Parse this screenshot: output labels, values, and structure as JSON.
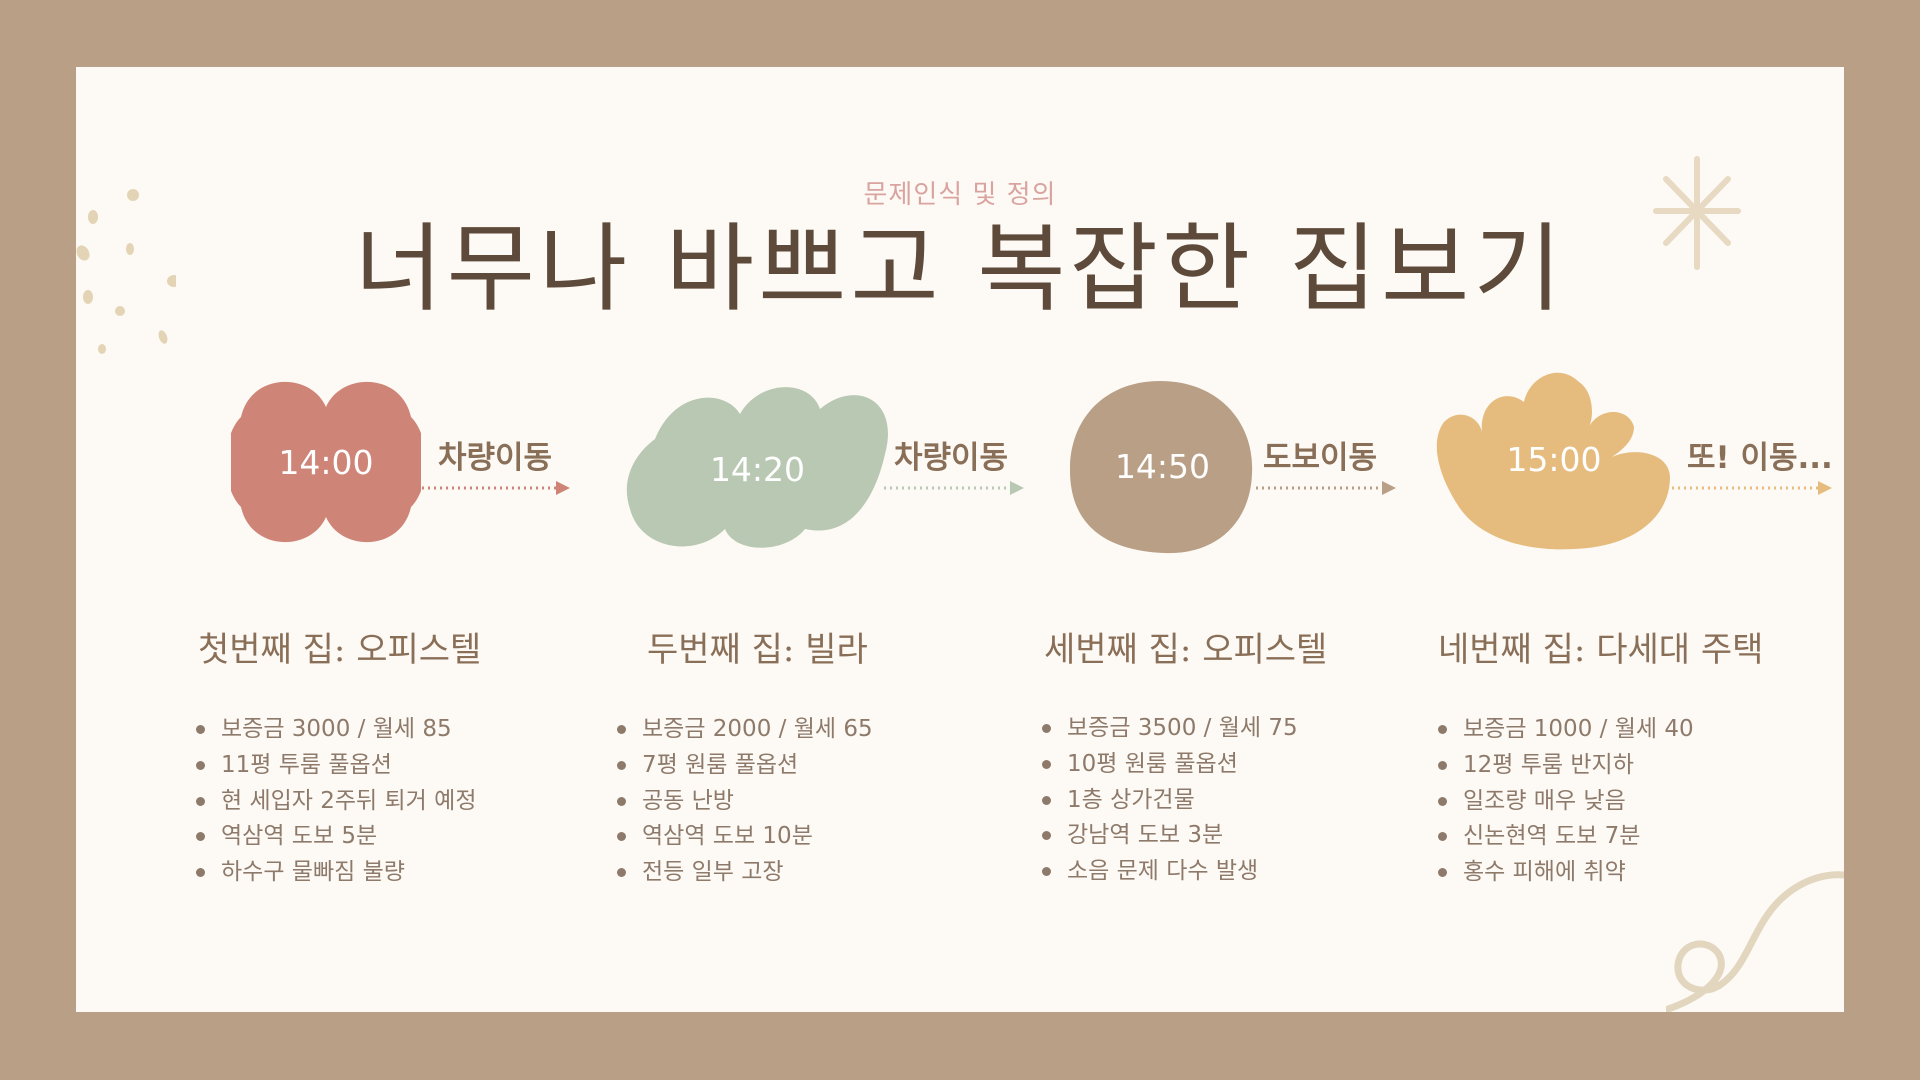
{
  "slide": {
    "subtitle": "문제인식 및 정의",
    "title": "너무나 바쁘고 복잡한 집보기"
  },
  "colors": {
    "frame": "#b89f85",
    "card": "#fdfaf5",
    "red": "#cf8478",
    "green": "#b9c8b2",
    "brown": "#b89f85",
    "yellow": "#e6bc7e"
  },
  "steps": [
    {
      "time": "14:00",
      "move": "차량이동",
      "house": "첫번째 집: 오피스텔",
      "facts": [
        "보증금 3000 / 월세 85",
        "11평 투룸 풀옵션",
        "현 세입자 2주뒤 퇴거 예정",
        "역삼역 도보 5분",
        "하수구 물빠짐 불량"
      ]
    },
    {
      "time": "14:20",
      "move": "차량이동",
      "house": "두번째 집: 빌라",
      "facts": [
        "보증금 2000 / 월세 65",
        "7평 원룸 풀옵션",
        "공동 난방",
        "역삼역 도보 10분",
        "전등 일부 고장"
      ]
    },
    {
      "time": "14:50",
      "move": "도보이동",
      "house": "세번째 집: 오피스텔",
      "facts": [
        "보증금 3500 / 월세 75",
        "10평 원룸 풀옵션",
        "1층 상가건물",
        "강남역 도보 3분",
        "소음 문제 다수 발생"
      ]
    },
    {
      "time": "15:00",
      "move": "또! 이동...",
      "house": "네번째 집: 다세대 주택",
      "facts": [
        "보증금 1000 / 월세 40",
        "12평 투룸 반지하",
        "일조량 매우 낮음",
        "신논현역 도보 7분",
        "홍수 피해에 취약"
      ]
    }
  ]
}
